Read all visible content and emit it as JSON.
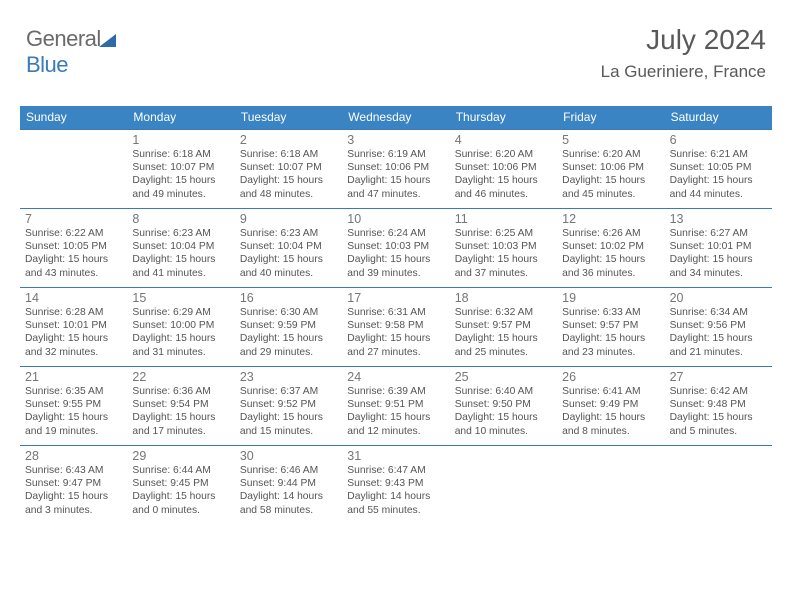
{
  "logo": {
    "part1": "General",
    "part2": "Blue"
  },
  "title": "July 2024",
  "location": "La Gueriniere, France",
  "colors": {
    "header_bg": "#3a84c4",
    "header_text": "#ffffff",
    "divider": "#3a7ab8",
    "daynum": "#767676",
    "body_text": "#555555",
    "title_text": "#595959",
    "logo_gray": "#6a6a6a",
    "logo_blue": "#3a7ab8",
    "page_bg": "#ffffff"
  },
  "typography": {
    "title_fontsize": 28,
    "location_fontsize": 17,
    "header_fontsize": 12,
    "daynum_fontsize": 12.5,
    "body_fontsize": 10.3
  },
  "day_headers": [
    "Sunday",
    "Monday",
    "Tuesday",
    "Wednesday",
    "Thursday",
    "Friday",
    "Saturday"
  ],
  "weeks": [
    [
      {
        "num": "",
        "sunrise": "",
        "sunset": "",
        "day1": "",
        "day2": ""
      },
      {
        "num": "1",
        "sunrise": "Sunrise: 6:18 AM",
        "sunset": "Sunset: 10:07 PM",
        "day1": "Daylight: 15 hours",
        "day2": "and 49 minutes."
      },
      {
        "num": "2",
        "sunrise": "Sunrise: 6:18 AM",
        "sunset": "Sunset: 10:07 PM",
        "day1": "Daylight: 15 hours",
        "day2": "and 48 minutes."
      },
      {
        "num": "3",
        "sunrise": "Sunrise: 6:19 AM",
        "sunset": "Sunset: 10:06 PM",
        "day1": "Daylight: 15 hours",
        "day2": "and 47 minutes."
      },
      {
        "num": "4",
        "sunrise": "Sunrise: 6:20 AM",
        "sunset": "Sunset: 10:06 PM",
        "day1": "Daylight: 15 hours",
        "day2": "and 46 minutes."
      },
      {
        "num": "5",
        "sunrise": "Sunrise: 6:20 AM",
        "sunset": "Sunset: 10:06 PM",
        "day1": "Daylight: 15 hours",
        "day2": "and 45 minutes."
      },
      {
        "num": "6",
        "sunrise": "Sunrise: 6:21 AM",
        "sunset": "Sunset: 10:05 PM",
        "day1": "Daylight: 15 hours",
        "day2": "and 44 minutes."
      }
    ],
    [
      {
        "num": "7",
        "sunrise": "Sunrise: 6:22 AM",
        "sunset": "Sunset: 10:05 PM",
        "day1": "Daylight: 15 hours",
        "day2": "and 43 minutes."
      },
      {
        "num": "8",
        "sunrise": "Sunrise: 6:23 AM",
        "sunset": "Sunset: 10:04 PM",
        "day1": "Daylight: 15 hours",
        "day2": "and 41 minutes."
      },
      {
        "num": "9",
        "sunrise": "Sunrise: 6:23 AM",
        "sunset": "Sunset: 10:04 PM",
        "day1": "Daylight: 15 hours",
        "day2": "and 40 minutes."
      },
      {
        "num": "10",
        "sunrise": "Sunrise: 6:24 AM",
        "sunset": "Sunset: 10:03 PM",
        "day1": "Daylight: 15 hours",
        "day2": "and 39 minutes."
      },
      {
        "num": "11",
        "sunrise": "Sunrise: 6:25 AM",
        "sunset": "Sunset: 10:03 PM",
        "day1": "Daylight: 15 hours",
        "day2": "and 37 minutes."
      },
      {
        "num": "12",
        "sunrise": "Sunrise: 6:26 AM",
        "sunset": "Sunset: 10:02 PM",
        "day1": "Daylight: 15 hours",
        "day2": "and 36 minutes."
      },
      {
        "num": "13",
        "sunrise": "Sunrise: 6:27 AM",
        "sunset": "Sunset: 10:01 PM",
        "day1": "Daylight: 15 hours",
        "day2": "and 34 minutes."
      }
    ],
    [
      {
        "num": "14",
        "sunrise": "Sunrise: 6:28 AM",
        "sunset": "Sunset: 10:01 PM",
        "day1": "Daylight: 15 hours",
        "day2": "and 32 minutes."
      },
      {
        "num": "15",
        "sunrise": "Sunrise: 6:29 AM",
        "sunset": "Sunset: 10:00 PM",
        "day1": "Daylight: 15 hours",
        "day2": "and 31 minutes."
      },
      {
        "num": "16",
        "sunrise": "Sunrise: 6:30 AM",
        "sunset": "Sunset: 9:59 PM",
        "day1": "Daylight: 15 hours",
        "day2": "and 29 minutes."
      },
      {
        "num": "17",
        "sunrise": "Sunrise: 6:31 AM",
        "sunset": "Sunset: 9:58 PM",
        "day1": "Daylight: 15 hours",
        "day2": "and 27 minutes."
      },
      {
        "num": "18",
        "sunrise": "Sunrise: 6:32 AM",
        "sunset": "Sunset: 9:57 PM",
        "day1": "Daylight: 15 hours",
        "day2": "and 25 minutes."
      },
      {
        "num": "19",
        "sunrise": "Sunrise: 6:33 AM",
        "sunset": "Sunset: 9:57 PM",
        "day1": "Daylight: 15 hours",
        "day2": "and 23 minutes."
      },
      {
        "num": "20",
        "sunrise": "Sunrise: 6:34 AM",
        "sunset": "Sunset: 9:56 PM",
        "day1": "Daylight: 15 hours",
        "day2": "and 21 minutes."
      }
    ],
    [
      {
        "num": "21",
        "sunrise": "Sunrise: 6:35 AM",
        "sunset": "Sunset: 9:55 PM",
        "day1": "Daylight: 15 hours",
        "day2": "and 19 minutes."
      },
      {
        "num": "22",
        "sunrise": "Sunrise: 6:36 AM",
        "sunset": "Sunset: 9:54 PM",
        "day1": "Daylight: 15 hours",
        "day2": "and 17 minutes."
      },
      {
        "num": "23",
        "sunrise": "Sunrise: 6:37 AM",
        "sunset": "Sunset: 9:52 PM",
        "day1": "Daylight: 15 hours",
        "day2": "and 15 minutes."
      },
      {
        "num": "24",
        "sunrise": "Sunrise: 6:39 AM",
        "sunset": "Sunset: 9:51 PM",
        "day1": "Daylight: 15 hours",
        "day2": "and 12 minutes."
      },
      {
        "num": "25",
        "sunrise": "Sunrise: 6:40 AM",
        "sunset": "Sunset: 9:50 PM",
        "day1": "Daylight: 15 hours",
        "day2": "and 10 minutes."
      },
      {
        "num": "26",
        "sunrise": "Sunrise: 6:41 AM",
        "sunset": "Sunset: 9:49 PM",
        "day1": "Daylight: 15 hours",
        "day2": "and 8 minutes."
      },
      {
        "num": "27",
        "sunrise": "Sunrise: 6:42 AM",
        "sunset": "Sunset: 9:48 PM",
        "day1": "Daylight: 15 hours",
        "day2": "and 5 minutes."
      }
    ],
    [
      {
        "num": "28",
        "sunrise": "Sunrise: 6:43 AM",
        "sunset": "Sunset: 9:47 PM",
        "day1": "Daylight: 15 hours",
        "day2": "and 3 minutes."
      },
      {
        "num": "29",
        "sunrise": "Sunrise: 6:44 AM",
        "sunset": "Sunset: 9:45 PM",
        "day1": "Daylight: 15 hours",
        "day2": "and 0 minutes."
      },
      {
        "num": "30",
        "sunrise": "Sunrise: 6:46 AM",
        "sunset": "Sunset: 9:44 PM",
        "day1": "Daylight: 14 hours",
        "day2": "and 58 minutes."
      },
      {
        "num": "31",
        "sunrise": "Sunrise: 6:47 AM",
        "sunset": "Sunset: 9:43 PM",
        "day1": "Daylight: 14 hours",
        "day2": "and 55 minutes."
      },
      {
        "num": "",
        "sunrise": "",
        "sunset": "",
        "day1": "",
        "day2": ""
      },
      {
        "num": "",
        "sunrise": "",
        "sunset": "",
        "day1": "",
        "day2": ""
      },
      {
        "num": "",
        "sunrise": "",
        "sunset": "",
        "day1": "",
        "day2": ""
      }
    ]
  ]
}
